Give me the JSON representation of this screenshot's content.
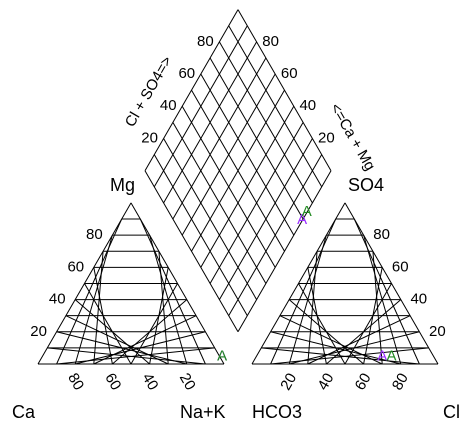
{
  "chart_data": {
    "type": "scatter",
    "subtype": "piper-diagram",
    "title": "",
    "grid_step": 10,
    "tick_labels": [
      "20",
      "40",
      "60",
      "80"
    ],
    "cation_triangle": {
      "corner_labels": {
        "left": "Ca",
        "top": "Mg",
        "right": "Na+K"
      }
    },
    "anion_triangle": {
      "corner_labels": {
        "left": "HCO3",
        "top": "SO4",
        "right": "Cl"
      }
    },
    "diamond": {
      "left_edge_title": "Cl + SO4=>",
      "right_edge_title": "<=Ca + Mg"
    },
    "marker_symbol": "A",
    "marker_colors": {
      "primary": "#9b30ff",
      "secondary": "#228b22"
    },
    "samples": [
      {
        "cations": {
          "Ca": 0,
          "Mg": 2,
          "NaK": 98
        },
        "anions": {
          "HCO3": 29,
          "SO4": 2,
          "Cl": 69
        },
        "diamond": {
          "ClSO4": 71,
          "CaMg": 2
        },
        "color": "#9b30ff"
      },
      {
        "cations": {
          "Ca": 0,
          "Mg": 2,
          "NaK": 98
        },
        "anions": {
          "HCO3": 24,
          "SO4": 2,
          "Cl": 74
        },
        "diamond": {
          "ClSO4": 76,
          "CaMg": 2
        },
        "color": "#228b22"
      }
    ]
  }
}
